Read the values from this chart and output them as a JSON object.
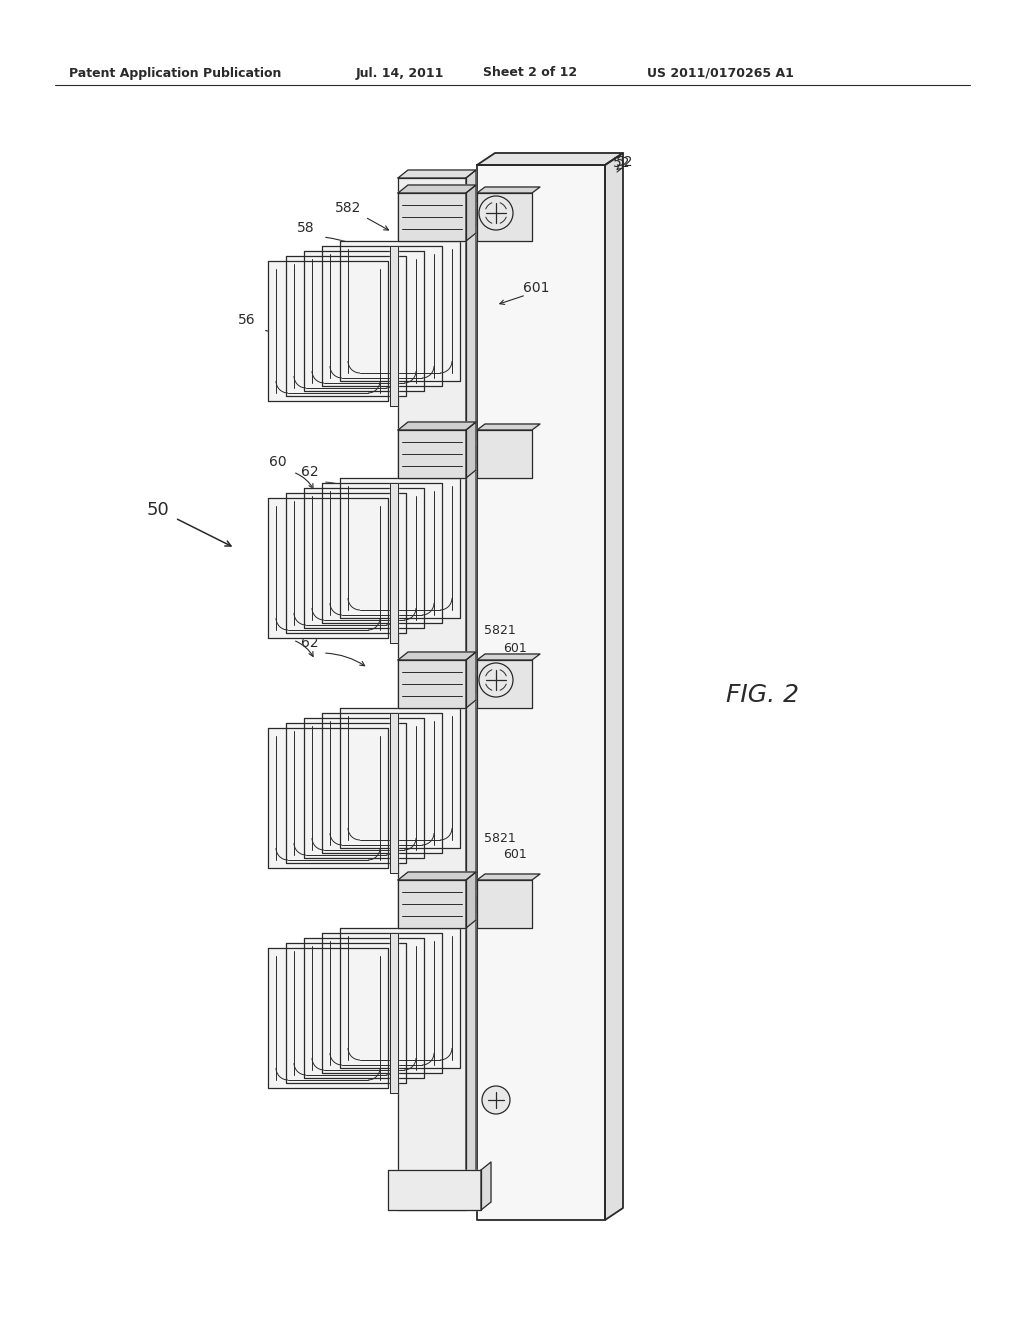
{
  "bg_color": "#ffffff",
  "line_color": "#2a2a2a",
  "header_text": "Patent Application Publication",
  "header_date": "Jul. 14, 2011",
  "header_sheet": "Sheet 2 of 12",
  "header_patent": "US 2011/0170265 A1",
  "fig_label": "FIG. 2",
  "panel_color": "#f8f8f8",
  "fin_color": "#f0f0f0",
  "connector_color": "#e8e8e8",
  "shadow_color": "#d8d8d8"
}
